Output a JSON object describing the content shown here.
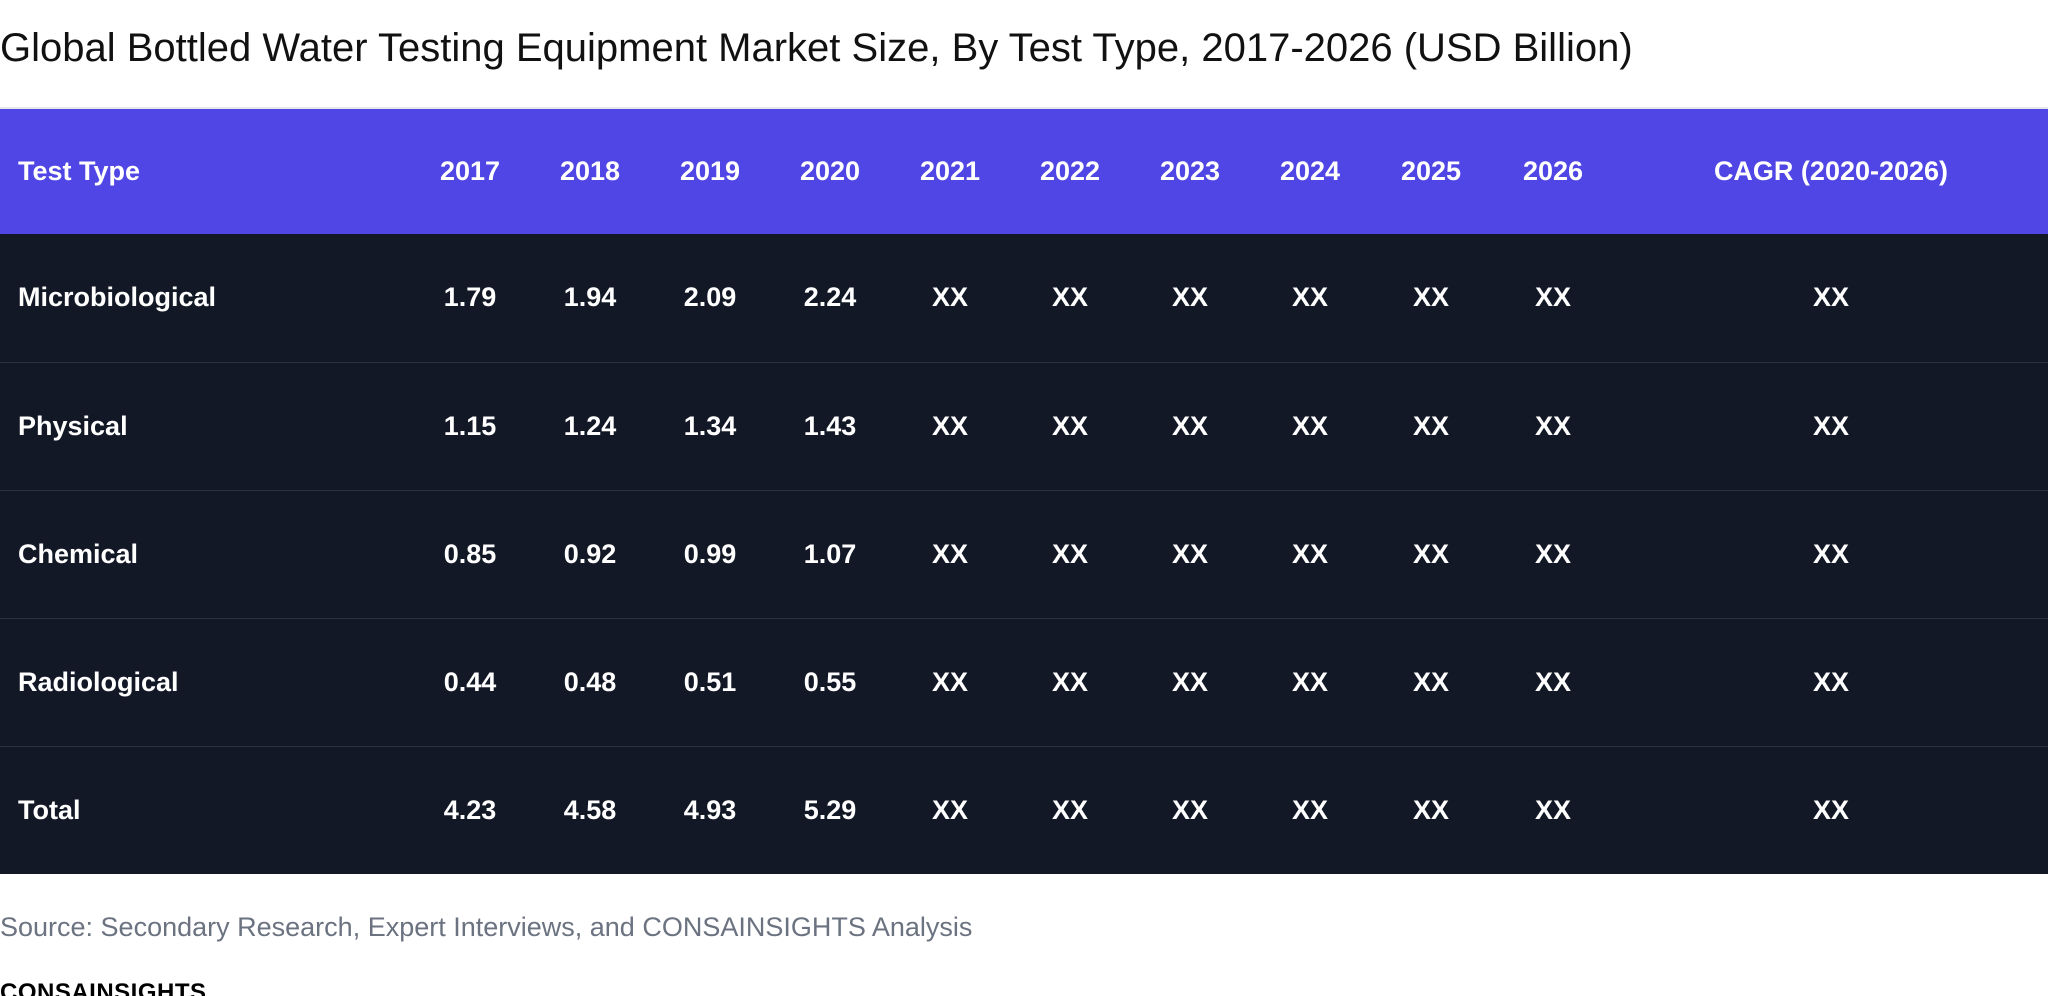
{
  "title": "Global Bottled Water Testing Equipment Market Size, By Test Type, 2017-2026 (USD Billion)",
  "table": {
    "headers": [
      "Test Type",
      "2017",
      "2018",
      "2019",
      "2020",
      "2021",
      "2022",
      "2023",
      "2024",
      "2025",
      "2026",
      "CAGR (2020-2026)"
    ],
    "rows": [
      [
        "Microbiological",
        "1.79",
        "1.94",
        "2.09",
        "2.24",
        "XX",
        "XX",
        "XX",
        "XX",
        "XX",
        "XX",
        "XX"
      ],
      [
        "Physical",
        "1.15",
        "1.24",
        "1.34",
        "1.43",
        "XX",
        "XX",
        "XX",
        "XX",
        "XX",
        "XX",
        "XX"
      ],
      [
        "Chemical",
        "0.85",
        "0.92",
        "0.99",
        "1.07",
        "XX",
        "XX",
        "XX",
        "XX",
        "XX",
        "XX",
        "XX"
      ],
      [
        "Radiological",
        "0.44",
        "0.48",
        "0.51",
        "0.55",
        "XX",
        "XX",
        "XX",
        "XX",
        "XX",
        "XX",
        "XX"
      ],
      [
        "Total",
        "4.23",
        "4.58",
        "4.93",
        "5.29",
        "XX",
        "XX",
        "XX",
        "XX",
        "XX",
        "XX",
        "XX"
      ]
    ]
  },
  "source": "Source: Secondary Research, Expert Interviews, and CONSAINSIGHTS Analysis",
  "logo_text": "CONSAINSIGHTS",
  "colors": {
    "header_bg": "#4f46e5",
    "body_bg": "#121826",
    "text_light": "#ffffff",
    "source_text": "#6b7280"
  }
}
